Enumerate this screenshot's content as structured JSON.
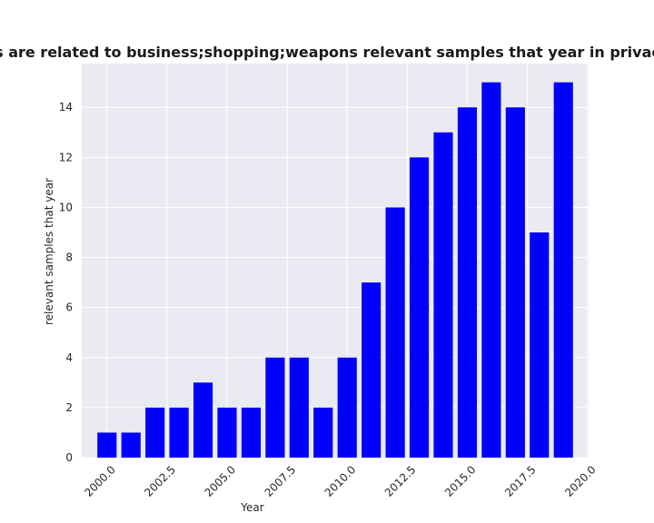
{
  "chart_data": {
    "type": "bar",
    "title": "Categories are related to business;shopping;weapons relevant samples that year in privacy policies",
    "xlabel": "Year",
    "ylabel": "relevant samples that year",
    "x": [
      2000,
      2001,
      2002,
      2003,
      2004,
      2005,
      2006,
      2007,
      2008,
      2009,
      2010,
      2011,
      2012,
      2013,
      2014,
      2015,
      2016,
      2017,
      2018,
      2019
    ],
    "values": [
      1,
      1,
      2,
      2,
      3,
      2,
      2,
      4,
      4,
      2,
      4,
      7,
      10,
      12,
      13,
      14,
      15,
      14,
      9,
      15
    ],
    "xlim": [
      1998.95,
      2020.05
    ],
    "ylim": [
      0,
      15.75
    ],
    "xticks": [
      "2000.0",
      "2002.5",
      "2005.0",
      "2007.5",
      "2010.0",
      "2012.5",
      "2015.0",
      "2017.5",
      "2020.0"
    ],
    "yticks": [
      "0",
      "2",
      "4",
      "6",
      "8",
      "10",
      "12",
      "14"
    ],
    "bar_color": "#0000ff",
    "background_color": "#eaeaf2",
    "grid_color": "#ffffff",
    "grid": true
  }
}
